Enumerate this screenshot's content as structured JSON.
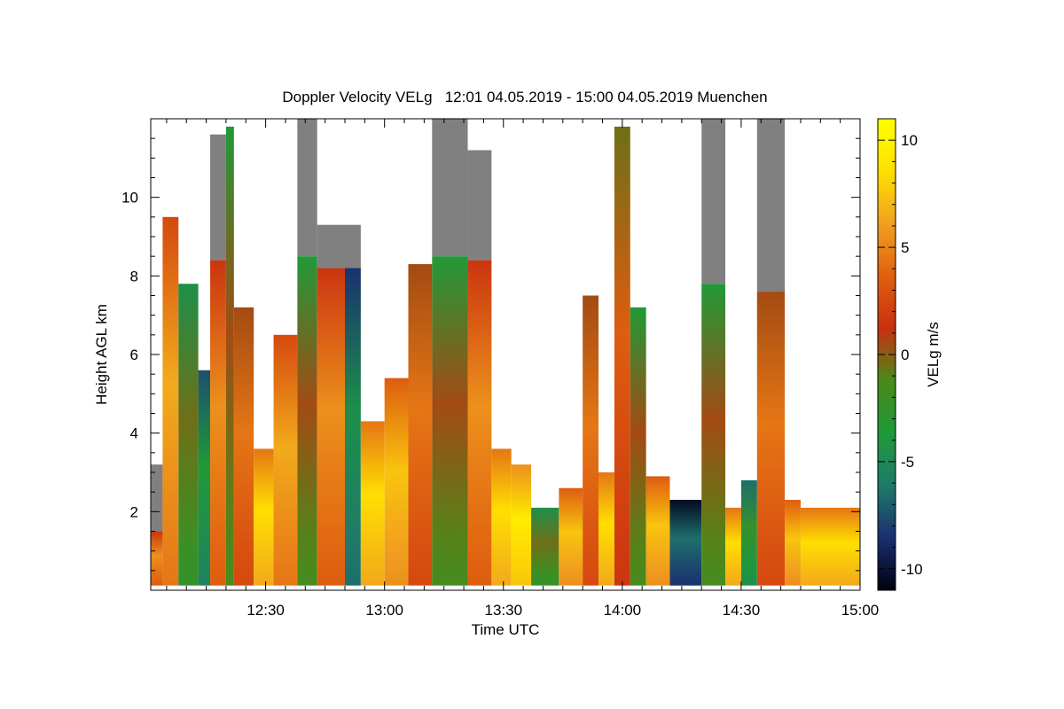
{
  "chart_data": {
    "type": "heatmap",
    "title": "Doppler Velocity VELg   12:01 04.05.2019 - 15:00 04.05.2019 Muenchen",
    "xlabel": "Time UTC",
    "ylabel": "Height AGL km",
    "x_ticks": [
      "12:30",
      "13:00",
      "13:30",
      "14:00",
      "14:30",
      "15:00"
    ],
    "x_tick_minutes": [
      30,
      60,
      90,
      120,
      150,
      180
    ],
    "xlim_minutes": [
      1,
      180
    ],
    "y_ticks": [
      2,
      4,
      6,
      8,
      10
    ],
    "ylim": [
      0,
      12
    ],
    "grid": false,
    "colorbar": {
      "label": "VELg m/s",
      "ticks": [
        10,
        5,
        0,
        -5,
        -10
      ],
      "range": [
        -11,
        11
      ],
      "colormap": [
        "#000010",
        "#1a3070",
        "#1f7a6a",
        "#1e9a3a",
        "#4a8a1a",
        "#c83010",
        "#e06010",
        "#f0a020",
        "#ffe000",
        "#ffff00"
      ]
    },
    "masked_color": "#808080",
    "columns": [
      {
        "t0": 1,
        "t1": 4,
        "top": 3.2,
        "mean_velocity": 4,
        "masked_above": 1.5
      },
      {
        "t0": 4,
        "t1": 8,
        "top": 9.5,
        "mean_velocity": 5,
        "masked_above": null
      },
      {
        "t0": 8,
        "t1": 13,
        "top": 7.8,
        "mean_velocity": -2,
        "masked_above": null
      },
      {
        "t0": 13,
        "t1": 16,
        "top": 5.6,
        "mean_velocity": -5,
        "masked_above": null
      },
      {
        "t0": 16,
        "t1": 20,
        "top": 11.6,
        "mean_velocity": 4,
        "masked_above": 8.4
      },
      {
        "t0": 20,
        "t1": 22,
        "top": 11.8,
        "mean_velocity": -1,
        "masked_above": null
      },
      {
        "t0": 22,
        "t1": 27,
        "top": 7.2,
        "mean_velocity": 3,
        "masked_above": null
      },
      {
        "t0": 27,
        "t1": 32,
        "top": 3.6,
        "mean_velocity": 7,
        "masked_above": null
      },
      {
        "t0": 32,
        "t1": 38,
        "top": 6.5,
        "mean_velocity": 5,
        "masked_above": null
      },
      {
        "t0": 38,
        "t1": 43,
        "top": 12,
        "mean_velocity": -1,
        "masked_above": 8.5
      },
      {
        "t0": 43,
        "t1": 50,
        "top": 9.3,
        "mean_velocity": 4,
        "masked_above": 8.2
      },
      {
        "t0": 50,
        "t1": 54,
        "top": 9.3,
        "mean_velocity": -6,
        "masked_above": 8.2
      },
      {
        "t0": 54,
        "t1": 60,
        "top": 4.3,
        "mean_velocity": 7,
        "masked_above": null
      },
      {
        "t0": 60,
        "t1": 66,
        "top": 5.4,
        "mean_velocity": 6,
        "masked_above": null
      },
      {
        "t0": 66,
        "t1": 72,
        "top": 8.3,
        "mean_velocity": 3,
        "masked_above": null
      },
      {
        "t0": 72,
        "t1": 81,
        "top": 12,
        "mean_velocity": -1,
        "masked_above": 8.5
      },
      {
        "t0": 81,
        "t1": 87,
        "top": 11.2,
        "mean_velocity": 4,
        "masked_above": 8.4
      },
      {
        "t0": 87,
        "t1": 92,
        "top": 3.6,
        "mean_velocity": 7,
        "masked_above": null
      },
      {
        "t0": 92,
        "t1": 97,
        "top": 3.2,
        "mean_velocity": 8,
        "masked_above": null
      },
      {
        "t0": 97,
        "t1": 104,
        "top": 2.1,
        "mean_velocity": -2,
        "masked_above": null
      },
      {
        "t0": 104,
        "t1": 110,
        "top": 2.6,
        "mean_velocity": 6,
        "masked_above": null
      },
      {
        "t0": 110,
        "t1": 114,
        "top": 7.5,
        "mean_velocity": 3,
        "masked_above": null
      },
      {
        "t0": 114,
        "t1": 118,
        "top": 3.0,
        "mean_velocity": 7,
        "masked_above": null
      },
      {
        "t0": 118,
        "t1": 122,
        "top": 11.8,
        "mean_velocity": 2,
        "masked_above": null
      },
      {
        "t0": 122,
        "t1": 126,
        "top": 7.2,
        "mean_velocity": -1,
        "masked_above": null
      },
      {
        "t0": 126,
        "t1": 132,
        "top": 2.9,
        "mean_velocity": 6,
        "masked_above": null
      },
      {
        "t0": 132,
        "t1": 140,
        "top": 2.3,
        "mean_velocity": -8,
        "masked_above": null
      },
      {
        "t0": 140,
        "t1": 146,
        "top": 12,
        "mean_velocity": -1,
        "masked_above": 7.8
      },
      {
        "t0": 146,
        "t1": 150,
        "top": 2.1,
        "mean_velocity": 7,
        "masked_above": null
      },
      {
        "t0": 150,
        "t1": 154,
        "top": 2.8,
        "mean_velocity": -4,
        "masked_above": null
      },
      {
        "t0": 154,
        "t1": 161,
        "top": 12,
        "mean_velocity": 3,
        "masked_above": 7.6
      },
      {
        "t0": 161,
        "t1": 165,
        "top": 2.3,
        "mean_velocity": 6,
        "masked_above": null
      },
      {
        "t0": 165,
        "t1": 180,
        "top": 2.1,
        "mean_velocity": 7,
        "masked_above": null
      }
    ]
  }
}
